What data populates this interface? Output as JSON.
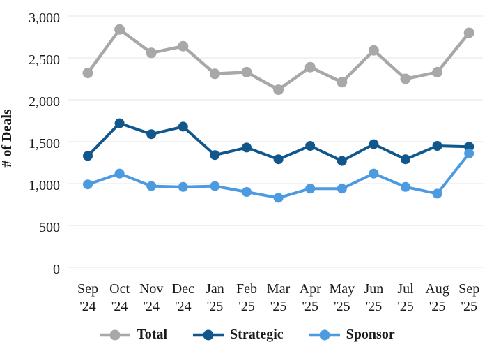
{
  "colors": {
    "background": "#ffffff",
    "grid": "#e4e4e4",
    "text": "#1a1a1a"
  },
  "chart_data": {
    "type": "line",
    "title": "",
    "xlabel": "",
    "ylabel": "# of Deals",
    "ylim": [
      0,
      3000
    ],
    "grid": true,
    "legend_position": "bottom",
    "y_ticks": [
      {
        "value": 0,
        "label": "0"
      },
      {
        "value": 500,
        "label": "500"
      },
      {
        "value": 1000,
        "label": "1,000"
      },
      {
        "value": 1500,
        "label": "1,500"
      },
      {
        "value": 2000,
        "label": "2,000"
      },
      {
        "value": 2500,
        "label": "2,500"
      },
      {
        "value": 3000,
        "label": "3,000"
      }
    ],
    "categories": [
      "Sep '24",
      "Oct '24",
      "Nov '24",
      "Dec '24",
      "Jan '25",
      "Feb '25",
      "Mar '25",
      "Apr '25",
      "May '25",
      "Jun '25",
      "Jul '25",
      "Aug '25",
      "Sep '25"
    ],
    "series": [
      {
        "name": "Total",
        "color": "#a8a8a8",
        "values": [
          2320,
          2840,
          2560,
          2640,
          2310,
          2330,
          2120,
          2390,
          2210,
          2590,
          2250,
          2330,
          2800
        ]
      },
      {
        "name": "Strategic",
        "color": "#11578c",
        "values": [
          1330,
          1720,
          1590,
          1680,
          1340,
          1430,
          1290,
          1450,
          1270,
          1470,
          1290,
          1450,
          1440
        ]
      },
      {
        "name": "Sponsor",
        "color": "#4c9be1",
        "values": [
          990,
          1120,
          970,
          960,
          970,
          900,
          830,
          940,
          940,
          1120,
          960,
          880,
          1360
        ]
      }
    ]
  }
}
